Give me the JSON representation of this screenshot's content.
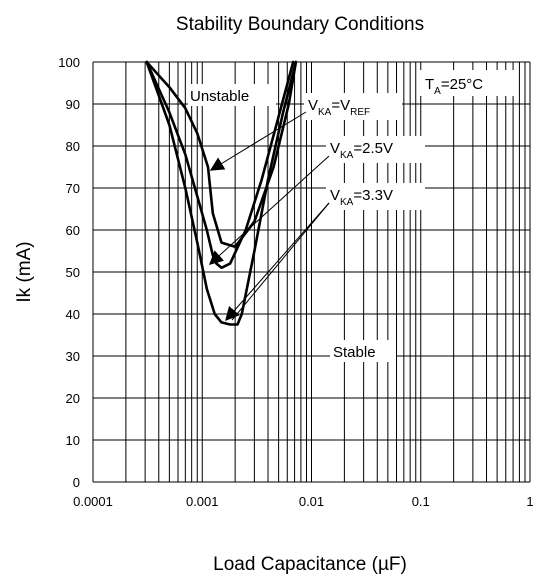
{
  "chart_data": {
    "type": "line",
    "title": "Stability Boundary Conditions",
    "xlabel": "Load Capacitance (µF)",
    "ylabel": "Ik (mA)",
    "x_scale": "log",
    "xlim": [
      0.0001,
      1
    ],
    "ylim": [
      0,
      100
    ],
    "x_ticks": [
      "0.0001",
      "0.001",
      "0.01",
      "0.1",
      "1"
    ],
    "y_ticks": [
      "0",
      "10",
      "20",
      "30",
      "40",
      "50",
      "60",
      "70",
      "80",
      "90",
      "100"
    ],
    "grid": true,
    "series": [
      {
        "name": "VKA=VREF",
        "x": [
          0.00031,
          0.0005,
          0.0007,
          0.0009,
          0.00113,
          0.00125,
          0.0015,
          0.002,
          0.003,
          0.0045,
          0.0062,
          0.0072
        ],
        "y": [
          100,
          94,
          89,
          83,
          75,
          64,
          57,
          56,
          62,
          75,
          90,
          100
        ]
      },
      {
        "name": "VKA=2.5V",
        "x": [
          0.00031,
          0.0005,
          0.0007,
          0.0009,
          0.0011,
          0.00125,
          0.00135,
          0.0015,
          0.0018,
          0.0025,
          0.0035,
          0.005,
          0.0068
        ],
        "y": [
          100,
          88,
          78,
          68,
          60,
          54,
          52,
          51,
          52,
          60,
          72,
          87,
          100
        ]
      },
      {
        "name": "VKA=3.3V",
        "x": [
          0.00031,
          0.0005,
          0.0007,
          0.0009,
          0.0011,
          0.0013,
          0.0015,
          0.0018,
          0.0021,
          0.0023,
          0.003,
          0.004,
          0.0055,
          0.0072
        ],
        "y": [
          100,
          85,
          70,
          57,
          46,
          40,
          38,
          37.5,
          37.5,
          40,
          55,
          72,
          88,
          100
        ]
      }
    ],
    "annotations": {
      "unstable": "Unstable",
      "stable": "Stable",
      "ta": "T",
      "ta_sub": "A",
      "ta_rest": "=25°C",
      "vref_v": "V",
      "vref_ka": "KA",
      "vref_eq": "=V",
      "vref_sub": "REF",
      "v25_v": "V",
      "v25_ka": "KA",
      "v25_val": "=2.5V",
      "v33_v": "V",
      "v33_ka": "KA",
      "v33_val": "=3.3V"
    }
  }
}
